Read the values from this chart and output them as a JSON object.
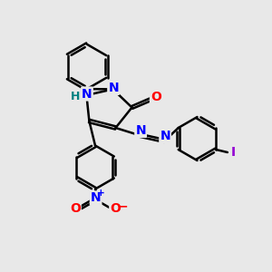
{
  "background_color": "#e8e8e8",
  "bond_color": "#000000",
  "bond_width": 1.8,
  "atom_colors": {
    "N": "#0000ff",
    "O": "#ff0000",
    "H": "#008080",
    "I": "#9400d3",
    "C": "#000000"
  },
  "figsize": [
    3.0,
    3.0
  ],
  "dpi": 100,
  "xlim": [
    0,
    10
  ],
  "ylim": [
    0,
    10
  ]
}
